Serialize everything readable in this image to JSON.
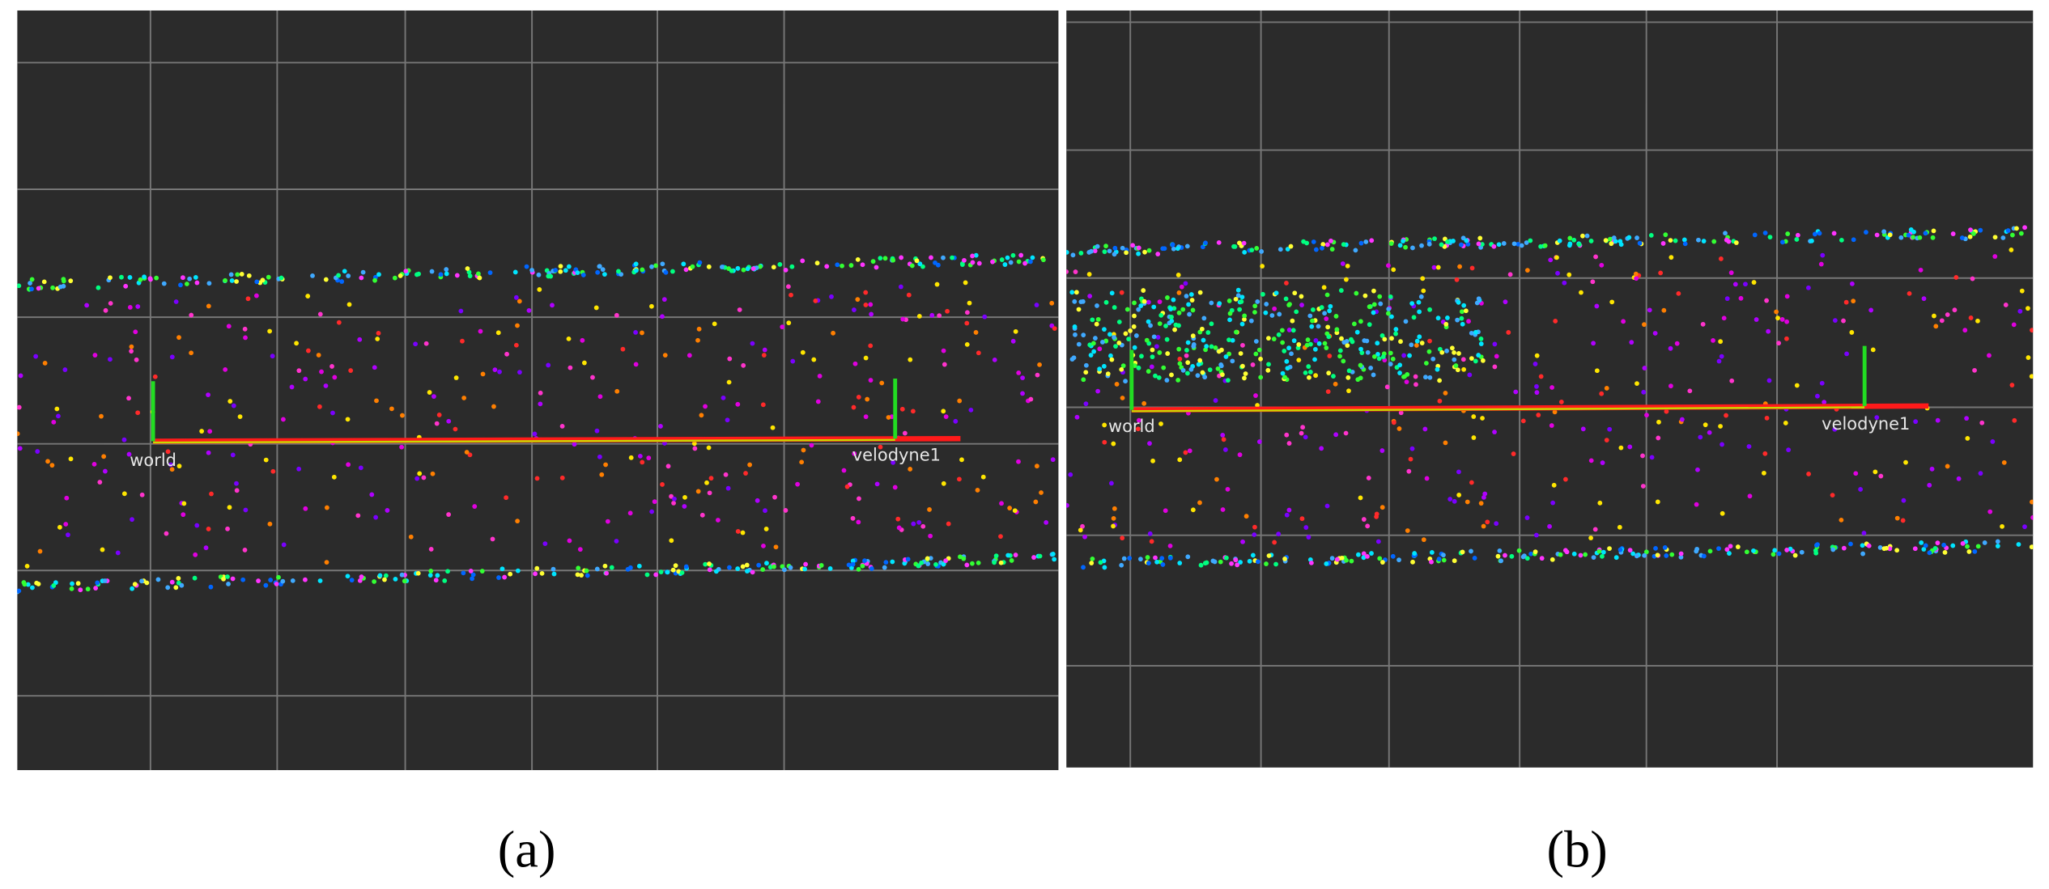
{
  "panels": [
    {
      "label": "(a)",
      "frames": [
        "world",
        "velodyne1"
      ]
    },
    {
      "label": "(b)",
      "frames": [
        "world",
        "velodyne1"
      ]
    }
  ]
}
